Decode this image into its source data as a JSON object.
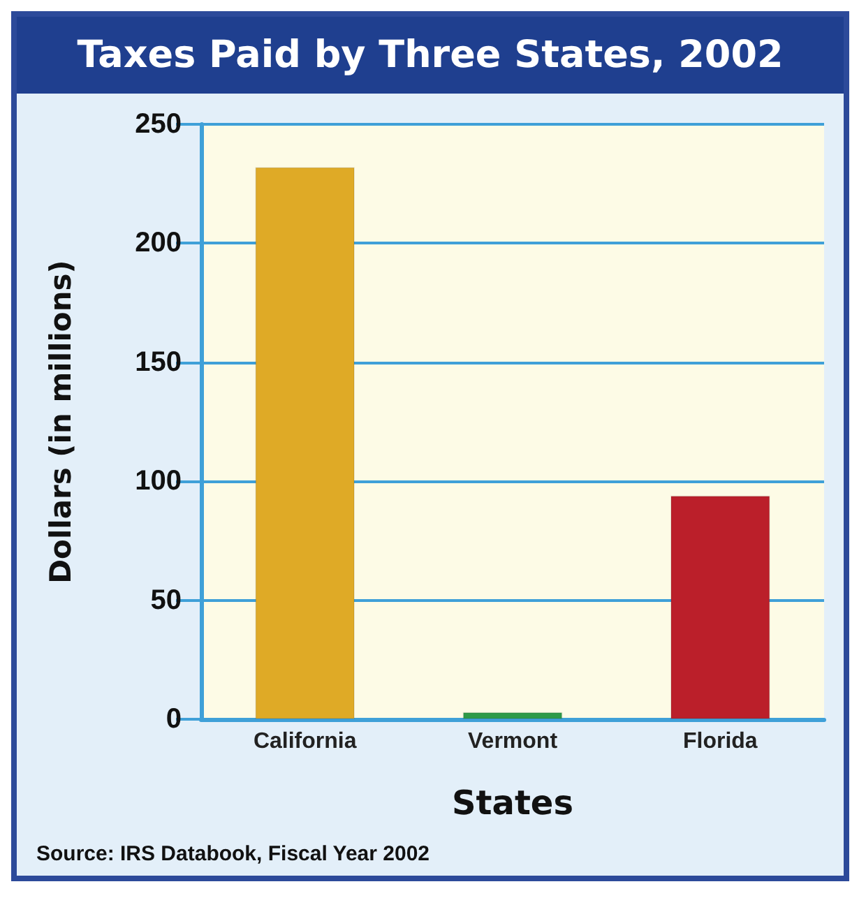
{
  "chart_data": {
    "type": "bar",
    "title": "Taxes Paid by Three States, 2002",
    "xlabel": "States",
    "ylabel": "Dollars (in millions)",
    "categories": [
      "California",
      "Vermont",
      "Florida"
    ],
    "values": [
      232,
      3,
      94
    ],
    "colors": [
      "#dfaa26",
      "#2e9a48",
      "#bb1f2a"
    ],
    "ylim": [
      0,
      250
    ],
    "yticks": [
      0,
      50,
      100,
      150,
      200,
      250
    ],
    "grid": "y",
    "annotations": [
      "Source: IRS Databook, Fiscal Year 2002"
    ]
  }
}
